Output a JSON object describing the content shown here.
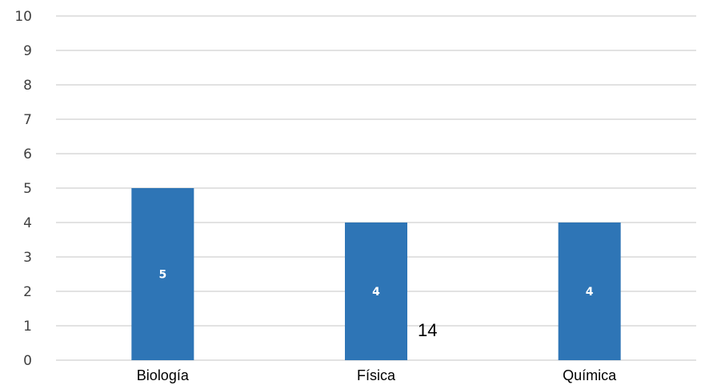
{
  "chart_data": {
    "type": "bar",
    "categories": [
      "Biología",
      "Física",
      "Química"
    ],
    "values": [
      5,
      4,
      4
    ],
    "data_labels": [
      "5",
      "4",
      "4"
    ],
    "ylim": [
      0,
      10
    ],
    "yticks": [
      0,
      1,
      2,
      3,
      4,
      5,
      6,
      7,
      8,
      9,
      10
    ],
    "grid": true,
    "legend": "none",
    "bar_color": "#2E75B6",
    "annotation": "14"
  }
}
